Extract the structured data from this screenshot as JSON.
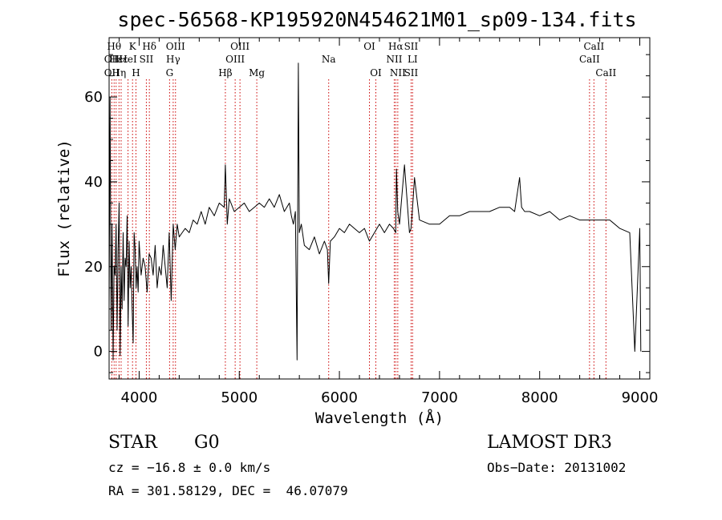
{
  "chart_data": {
    "type": "line",
    "title": "spec-56568-KP195920N454621M01_sp09-134.fits",
    "xlabel": "Wavelength (Å)",
    "ylabel": "Flux (relative)",
    "xlim": [
      3700,
      9100
    ],
    "ylim": [
      -6.5,
      74
    ],
    "xticks": [
      4000,
      5000,
      6000,
      7000,
      8000,
      9000
    ],
    "yticks": [
      0,
      20,
      40,
      60
    ],
    "grid": false,
    "series": [
      {
        "name": "flux",
        "x": [
          3700,
          3710,
          3720,
          3730,
          3740,
          3750,
          3760,
          3770,
          3780,
          3790,
          3800,
          3810,
          3820,
          3830,
          3840,
          3850,
          3860,
          3870,
          3880,
          3890,
          3900,
          3910,
          3920,
          3930,
          3940,
          3950,
          3960,
          3970,
          3980,
          3990,
          4000,
          4020,
          4040,
          4060,
          4080,
          4100,
          4120,
          4140,
          4160,
          4180,
          4200,
          4220,
          4240,
          4260,
          4280,
          4300,
          4320,
          4340,
          4360,
          4380,
          4400,
          4430,
          4460,
          4500,
          4540,
          4580,
          4620,
          4660,
          4700,
          4750,
          4800,
          4850,
          4861,
          4880,
          4900,
          4950,
          5000,
          5050,
          5100,
          5150,
          5200,
          5250,
          5300,
          5350,
          5400,
          5450,
          5500,
          5520,
          5540,
          5560,
          5577,
          5590,
          5600,
          5620,
          5650,
          5700,
          5750,
          5800,
          5850,
          5880,
          5893,
          5910,
          5950,
          6000,
          6050,
          6100,
          6150,
          6200,
          6250,
          6300,
          6350,
          6400,
          6450,
          6500,
          6540,
          6563,
          6570,
          6583,
          6600,
          6650,
          6700,
          6716,
          6731,
          6750,
          6800,
          6900,
          7000,
          7100,
          7200,
          7300,
          7400,
          7500,
          7600,
          7700,
          7750,
          7800,
          7820,
          7850,
          7900,
          8000,
          8100,
          8200,
          8300,
          8400,
          8500,
          8600,
          8700,
          8800,
          8900,
          8950,
          9000,
          9010
        ],
        "values": [
          10,
          60,
          5,
          30,
          -2,
          20,
          18,
          30,
          5,
          24,
          35,
          -1,
          20,
          10,
          28,
          12,
          22,
          20,
          32,
          6,
          26,
          15,
          20,
          10,
          2,
          28,
          24,
          15,
          20,
          14,
          26,
          18,
          22,
          20,
          14,
          23,
          22,
          18,
          25,
          15,
          20,
          18,
          25,
          20,
          15,
          28,
          12,
          30,
          24,
          30,
          27,
          28,
          29,
          28,
          31,
          30,
          33,
          30,
          34,
          32,
          35,
          34,
          44,
          30,
          36,
          33,
          34,
          35,
          33,
          34,
          35,
          34,
          36,
          34,
          37,
          33,
          35,
          32,
          30,
          33,
          -2,
          68,
          28,
          30,
          25,
          24,
          27,
          23,
          26,
          24,
          16,
          26,
          27,
          29,
          28,
          30,
          29,
          28,
          29,
          26,
          28,
          30,
          28,
          30,
          29,
          28,
          43,
          33,
          30,
          44,
          28,
          29,
          34,
          41,
          31,
          30,
          30,
          32,
          32,
          33,
          33,
          33,
          34,
          34,
          33,
          41,
          34,
          33,
          33,
          32,
          33,
          31,
          32,
          31,
          31,
          31,
          31,
          29,
          28,
          0,
          29,
          0
        ]
      }
    ],
    "line_markers": [
      {
        "wl": 3727,
        "label": "OII",
        "row": 2
      },
      {
        "wl": 3727,
        "label": "OII",
        "row": 3
      },
      {
        "wl": 3750,
        "label": "Hθ",
        "row": 1
      },
      {
        "wl": 3770,
        "label": "Hε",
        "row": 2
      },
      {
        "wl": 3799,
        "label": "Hη",
        "row": 3
      },
      {
        "wl": 3820,
        "label": "Hε",
        "row": 2
      },
      {
        "wl": 3889,
        "label": "HeI",
        "row": 2
      },
      {
        "wl": 3934,
        "label": "K",
        "row": 1
      },
      {
        "wl": 3968,
        "label": "H",
        "row": 3
      },
      {
        "wl": 4072,
        "label": "SII",
        "row": 2
      },
      {
        "wl": 4102,
        "label": "Hδ",
        "row": 1
      },
      {
        "wl": 4304,
        "label": "G",
        "row": 3
      },
      {
        "wl": 4340,
        "label": "Hγ",
        "row": 2
      },
      {
        "wl": 4363,
        "label": "OIII",
        "row": 1
      },
      {
        "wl": 4861,
        "label": "Hβ",
        "row": 3
      },
      {
        "wl": 4959,
        "label": "OIII",
        "row": 2
      },
      {
        "wl": 5007,
        "label": "OIII",
        "row": 1
      },
      {
        "wl": 5175,
        "label": "Mg",
        "row": 3
      },
      {
        "wl": 5893,
        "label": "Na",
        "row": 2
      },
      {
        "wl": 6300,
        "label": "OI",
        "row": 1
      },
      {
        "wl": 6364,
        "label": "OI",
        "row": 3
      },
      {
        "wl": 6548,
        "label": "NII",
        "row": 2
      },
      {
        "wl": 6563,
        "label": "Hα",
        "row": 1
      },
      {
        "wl": 6583,
        "label": "NII",
        "row": 3
      },
      {
        "wl": 6716,
        "label": "SII",
        "row": 1
      },
      {
        "wl": 6716,
        "label": "SII",
        "row": 3
      },
      {
        "wl": 6731,
        "label": "LI",
        "row": 2
      },
      {
        "wl": 8498,
        "label": "CaII",
        "row": 2
      },
      {
        "wl": 8542,
        "label": "CaII",
        "row": 1
      },
      {
        "wl": 8662,
        "label": "CaII",
        "row": 3
      }
    ]
  },
  "info": {
    "object_type": "STAR",
    "subclass": "G0",
    "survey": "LAMOST DR3",
    "redshift": "cz = −16.8 ± 0.0 km/s",
    "obs_date": "Obs−Date: 20131002",
    "coords": "RA = 301.58129, DEC =  46.07079"
  },
  "colors": {
    "spectrum": "#000000",
    "marker_line": "#cc0000",
    "axis": "#000000",
    "background": "#ffffff"
  }
}
